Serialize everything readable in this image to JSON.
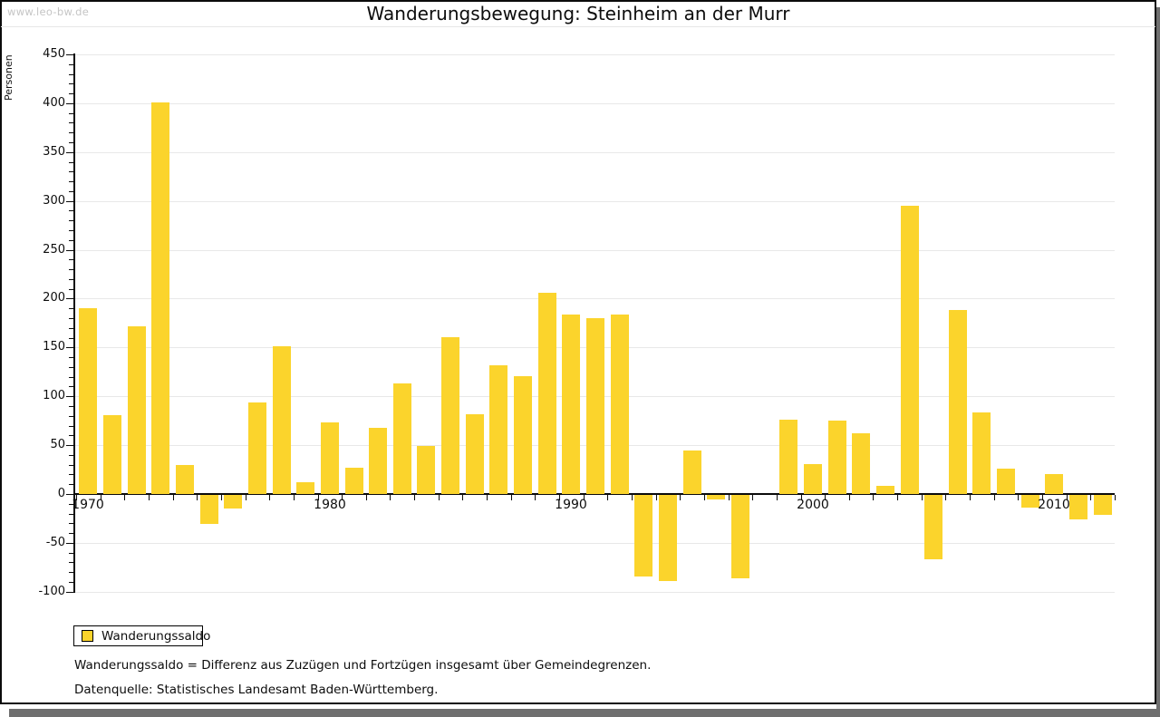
{
  "watermark": "www.leo-bw.de",
  "header": {
    "title": "Wanderungsbewegung: Steinheim an der Murr"
  },
  "legend": {
    "label": "Wanderungssaldo",
    "swatch_color": "#fbd42c"
  },
  "footnotes": [
    "Wanderungssaldo = Differenz aus Zuzügen und Fortzügen insgesamt über Gemeindegrenzen.",
    "Datenquelle: Statistisches Landesamt Baden-Württemberg."
  ],
  "chart_data": {
    "type": "bar",
    "title": "Wanderungsbewegung: Steinheim an der Murr",
    "xlabel": "",
    "ylabel": "Personen",
    "ylim": [
      -100,
      450
    ],
    "ytick_major_step": 50,
    "ytick_minor_step": 10,
    "grid": true,
    "legend_position": "bottom-left",
    "bar_color": "#fbd42c",
    "x": [
      1970,
      1971,
      1972,
      1973,
      1974,
      1975,
      1976,
      1977,
      1978,
      1979,
      1980,
      1981,
      1982,
      1983,
      1984,
      1985,
      1986,
      1987,
      1988,
      1989,
      1990,
      1991,
      1992,
      1993,
      1994,
      1995,
      1996,
      1997,
      1998,
      1999,
      2000,
      2001,
      2002,
      2003,
      2004,
      2005,
      2006,
      2007,
      2008,
      2009,
      2010,
      2011,
      2012
    ],
    "labeled_x_ticks": [
      "1970",
      "1980",
      "1990",
      "2000",
      "2010"
    ],
    "series": [
      {
        "name": "Wanderungssaldo",
        "values": [
          190,
          81,
          172,
          401,
          30,
          -30,
          -14,
          94,
          151,
          12,
          73,
          27,
          68,
          113,
          49,
          161,
          82,
          132,
          121,
          206,
          184,
          180,
          184,
          -83,
          -88,
          45,
          -5,
          -85,
          0,
          76,
          31,
          75,
          62,
          8,
          295,
          -66,
          188,
          84,
          26,
          -13,
          20,
          -25,
          -20
        ]
      }
    ]
  },
  "colors": {
    "bar": "#fbd42c",
    "gridline": "#e8e8e8",
    "axis": "#0b0b0b",
    "watermark": "#c5c5c5",
    "shadow": "#6f6f6f"
  }
}
